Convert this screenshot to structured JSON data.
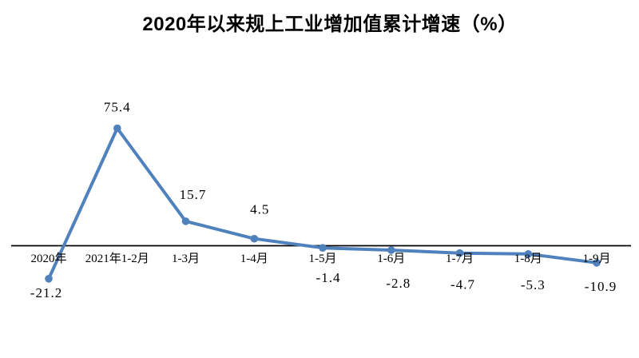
{
  "chart_data": {
    "type": "line",
    "title": "2020年以来规上工业增加值累计增速（%）",
    "categories": [
      "2020年",
      "2021年1-2月",
      "1-3月",
      "1-4月",
      "1-5月",
      "1-6月",
      "1-7月",
      "1-8月",
      "1-9月"
    ],
    "values": [
      -21.2,
      75.4,
      15.7,
      4.5,
      -1.4,
      -2.8,
      -4.7,
      -5.3,
      -10.9
    ],
    "data_labels": [
      "-21.2",
      "75.4",
      "15.7",
      "4.5",
      "-1.4",
      "-2.8",
      "-4.7",
      "-5.3",
      "-10.9"
    ],
    "xlabel": "",
    "ylabel": "",
    "ylim": [
      -30,
      90
    ],
    "grid": false,
    "legend": "none",
    "marker": "circle",
    "line_color": "#4F81BD",
    "axis_color": "#000000",
    "label_color": "#000000",
    "background_color": "#FFFFFF"
  }
}
